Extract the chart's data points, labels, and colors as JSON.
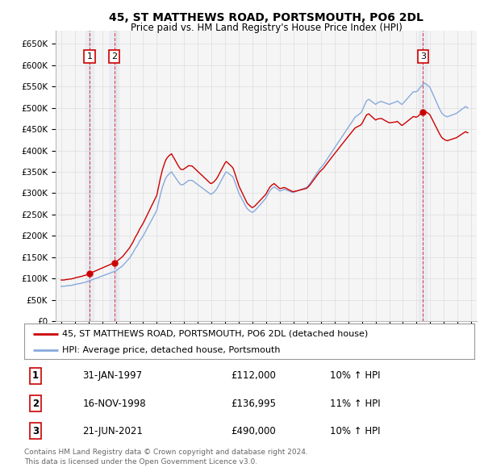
{
  "title": "45, ST MATTHEWS ROAD, PORTSMOUTH, PO6 2DL",
  "subtitle": "Price paid vs. HM Land Registry's House Price Index (HPI)",
  "ylabel_ticks": [
    "£0",
    "£50K",
    "£100K",
    "£150K",
    "£200K",
    "£250K",
    "£300K",
    "£350K",
    "£400K",
    "£450K",
    "£500K",
    "£550K",
    "£600K",
    "£650K"
  ],
  "ytick_values": [
    0,
    50000,
    100000,
    150000,
    200000,
    250000,
    300000,
    350000,
    400000,
    450000,
    500000,
    550000,
    600000,
    650000
  ],
  "ylim": [
    0,
    680000
  ],
  "xlim_start": 1994.6,
  "xlim_end": 2025.4,
  "background_color": "#ffffff",
  "chart_bg_color": "#f5f5f5",
  "grid_color": "#dddddd",
  "sale_color": "#cc0000",
  "hpi_color": "#88aadd",
  "vline_color": "#cc0000",
  "dot_color": "#cc0000",
  "transactions": [
    {
      "num": 1,
      "date_str": "31-JAN-1997",
      "price": 112000,
      "year": 1997.08,
      "pct": "10%",
      "dir": "↑"
    },
    {
      "num": 2,
      "date_str": "16-NOV-1998",
      "price": 136995,
      "year": 1998.88,
      "pct": "11%",
      "dir": "↑"
    },
    {
      "num": 3,
      "date_str": "21-JUN-2021",
      "price": 490000,
      "year": 2021.47,
      "pct": "10%",
      "dir": "↑"
    }
  ],
  "legend_sale_label": "45, ST MATTHEWS ROAD, PORTSMOUTH, PO6 2DL (detached house)",
  "legend_hpi_label": "HPI: Average price, detached house, Portsmouth",
  "footer1": "Contains HM Land Registry data © Crown copyright and database right 2024.",
  "footer2": "This data is licensed under the Open Government Licence v3.0.",
  "hpi_data_years": [
    1995.0,
    1995.083,
    1995.167,
    1995.25,
    1995.333,
    1995.417,
    1995.5,
    1995.583,
    1995.667,
    1995.75,
    1995.833,
    1995.917,
    1996.0,
    1996.083,
    1996.167,
    1996.25,
    1996.333,
    1996.417,
    1996.5,
    1996.583,
    1996.667,
    1996.75,
    1996.833,
    1996.917,
    1997.0,
    1997.083,
    1997.167,
    1997.25,
    1997.333,
    1997.417,
    1997.5,
    1997.583,
    1997.667,
    1997.75,
    1997.833,
    1997.917,
    1998.0,
    1998.083,
    1998.167,
    1998.25,
    1998.333,
    1998.417,
    1998.5,
    1998.583,
    1998.667,
    1998.75,
    1998.833,
    1998.917,
    1999.0,
    1999.083,
    1999.167,
    1999.25,
    1999.333,
    1999.417,
    1999.5,
    1999.583,
    1999.667,
    1999.75,
    1999.833,
    1999.917,
    2000.0,
    2000.083,
    2000.167,
    2000.25,
    2000.333,
    2000.417,
    2000.5,
    2000.583,
    2000.667,
    2000.75,
    2000.833,
    2000.917,
    2001.0,
    2001.083,
    2001.167,
    2001.25,
    2001.333,
    2001.417,
    2001.5,
    2001.583,
    2001.667,
    2001.75,
    2001.833,
    2001.917,
    2002.0,
    2002.083,
    2002.167,
    2002.25,
    2002.333,
    2002.417,
    2002.5,
    2002.583,
    2002.667,
    2002.75,
    2002.833,
    2002.917,
    2003.0,
    2003.083,
    2003.167,
    2003.25,
    2003.333,
    2003.417,
    2003.5,
    2003.583,
    2003.667,
    2003.75,
    2003.833,
    2003.917,
    2004.0,
    2004.083,
    2004.167,
    2004.25,
    2004.333,
    2004.417,
    2004.5,
    2004.583,
    2004.667,
    2004.75,
    2004.833,
    2004.917,
    2005.0,
    2005.083,
    2005.167,
    2005.25,
    2005.333,
    2005.417,
    2005.5,
    2005.583,
    2005.667,
    2005.75,
    2005.833,
    2005.917,
    2006.0,
    2006.083,
    2006.167,
    2006.25,
    2006.333,
    2006.417,
    2006.5,
    2006.583,
    2006.667,
    2006.75,
    2006.833,
    2006.917,
    2007.0,
    2007.083,
    2007.167,
    2007.25,
    2007.333,
    2007.417,
    2007.5,
    2007.583,
    2007.667,
    2007.75,
    2007.833,
    2007.917,
    2008.0,
    2008.083,
    2008.167,
    2008.25,
    2008.333,
    2008.417,
    2008.5,
    2008.583,
    2008.667,
    2008.75,
    2008.833,
    2008.917,
    2009.0,
    2009.083,
    2009.167,
    2009.25,
    2009.333,
    2009.417,
    2009.5,
    2009.583,
    2009.667,
    2009.75,
    2009.833,
    2009.917,
    2010.0,
    2010.083,
    2010.167,
    2010.25,
    2010.333,
    2010.417,
    2010.5,
    2010.583,
    2010.667,
    2010.75,
    2010.833,
    2010.917,
    2011.0,
    2011.083,
    2011.167,
    2011.25,
    2011.333,
    2011.417,
    2011.5,
    2011.583,
    2011.667,
    2011.75,
    2011.833,
    2011.917,
    2012.0,
    2012.083,
    2012.167,
    2012.25,
    2012.333,
    2012.417,
    2012.5,
    2012.583,
    2012.667,
    2012.75,
    2012.833,
    2012.917,
    2013.0,
    2013.083,
    2013.167,
    2013.25,
    2013.333,
    2013.417,
    2013.5,
    2013.583,
    2013.667,
    2013.75,
    2013.833,
    2013.917,
    2014.0,
    2014.083,
    2014.167,
    2014.25,
    2014.333,
    2014.417,
    2014.5,
    2014.583,
    2014.667,
    2014.75,
    2014.833,
    2014.917,
    2015.0,
    2015.083,
    2015.167,
    2015.25,
    2015.333,
    2015.417,
    2015.5,
    2015.583,
    2015.667,
    2015.75,
    2015.833,
    2015.917,
    2016.0,
    2016.083,
    2016.167,
    2016.25,
    2016.333,
    2016.417,
    2016.5,
    2016.583,
    2016.667,
    2016.75,
    2016.833,
    2016.917,
    2017.0,
    2017.083,
    2017.167,
    2017.25,
    2017.333,
    2017.417,
    2017.5,
    2017.583,
    2017.667,
    2017.75,
    2017.833,
    2017.917,
    2018.0,
    2018.083,
    2018.167,
    2018.25,
    2018.333,
    2018.417,
    2018.5,
    2018.583,
    2018.667,
    2018.75,
    2018.833,
    2018.917,
    2019.0,
    2019.083,
    2019.167,
    2019.25,
    2019.333,
    2019.417,
    2019.5,
    2019.583,
    2019.667,
    2019.75,
    2019.833,
    2019.917,
    2020.0,
    2020.083,
    2020.167,
    2020.25,
    2020.333,
    2020.417,
    2020.5,
    2020.583,
    2020.667,
    2020.75,
    2020.833,
    2020.917,
    2021.0,
    2021.083,
    2021.167,
    2021.25,
    2021.333,
    2021.417,
    2021.5,
    2021.583,
    2021.667,
    2021.75,
    2021.833,
    2021.917,
    2022.0,
    2022.083,
    2022.167,
    2022.25,
    2022.333,
    2022.417,
    2022.5,
    2022.583,
    2022.667,
    2022.75,
    2022.833,
    2022.917,
    2023.0,
    2023.083,
    2023.167,
    2023.25,
    2023.333,
    2023.417,
    2023.5,
    2023.583,
    2023.667,
    2023.75,
    2023.833,
    2023.917,
    2024.0,
    2024.083,
    2024.167,
    2024.25,
    2024.333,
    2024.417,
    2024.5,
    2024.583,
    2024.667,
    2024.75
  ],
  "hpi_data_values": [
    82000,
    82000,
    82000,
    82000,
    83000,
    83000,
    83000,
    84000,
    84000,
    84000,
    85000,
    85000,
    86000,
    87000,
    87000,
    88000,
    88000,
    89000,
    89000,
    90000,
    91000,
    91000,
    92000,
    93000,
    94000,
    95000,
    96000,
    97000,
    98000,
    99000,
    100000,
    101000,
    102000,
    103000,
    104000,
    105000,
    106000,
    107000,
    108000,
    109000,
    110000,
    111000,
    112000,
    113000,
    114000,
    115000,
    116000,
    117000,
    118000,
    120000,
    122000,
    124000,
    126000,
    128000,
    130000,
    133000,
    136000,
    139000,
    142000,
    145000,
    148000,
    152000,
    156000,
    160000,
    165000,
    170000,
    174000,
    178000,
    183000,
    188000,
    192000,
    196000,
    200000,
    205000,
    210000,
    215000,
    220000,
    225000,
    230000,
    235000,
    240000,
    245000,
    250000,
    255000,
    260000,
    272000,
    283000,
    295000,
    305000,
    315000,
    322000,
    330000,
    336000,
    340000,
    343000,
    346000,
    348000,
    350000,
    345000,
    342000,
    338000,
    334000,
    330000,
    326000,
    323000,
    320000,
    320000,
    320000,
    322000,
    324000,
    326000,
    328000,
    330000,
    330000,
    330000,
    330000,
    328000,
    326000,
    324000,
    322000,
    320000,
    318000,
    316000,
    314000,
    312000,
    310000,
    308000,
    306000,
    304000,
    302000,
    300000,
    298000,
    298000,
    300000,
    302000,
    305000,
    308000,
    312000,
    317000,
    322000,
    327000,
    332000,
    337000,
    342000,
    347000,
    350000,
    348000,
    346000,
    344000,
    342000,
    340000,
    337000,
    330000,
    323000,
    315000,
    308000,
    300000,
    295000,
    290000,
    285000,
    280000,
    275000,
    270000,
    265000,
    262000,
    260000,
    258000,
    256000,
    255000,
    257000,
    259000,
    262000,
    265000,
    268000,
    271000,
    274000,
    277000,
    280000,
    283000,
    286000,
    290000,
    295000,
    300000,
    305000,
    308000,
    311000,
    313000,
    315000,
    313000,
    311000,
    309000,
    307000,
    305000,
    306000,
    307000,
    308000,
    309000,
    308000,
    307000,
    306000,
    305000,
    304000,
    303000,
    302000,
    302000,
    303000,
    304000,
    305000,
    306000,
    307000,
    308000,
    309000,
    310000,
    311000,
    312000,
    313000,
    315000,
    318000,
    321000,
    325000,
    329000,
    333000,
    337000,
    341000,
    345000,
    349000,
    353000,
    357000,
    360000,
    363000,
    366000,
    370000,
    374000,
    378000,
    382000,
    386000,
    390000,
    394000,
    398000,
    402000,
    406000,
    410000,
    414000,
    418000,
    422000,
    426000,
    430000,
    434000,
    438000,
    442000,
    446000,
    450000,
    454000,
    458000,
    462000,
    466000,
    470000,
    474000,
    478000,
    480000,
    482000,
    484000,
    486000,
    488000,
    492000,
    498000,
    504000,
    510000,
    516000,
    518000,
    520000,
    518000,
    516000,
    514000,
    512000,
    510000,
    508000,
    510000,
    512000,
    513000,
    514000,
    515000,
    514000,
    513000,
    512000,
    511000,
    510000,
    509000,
    508000,
    509000,
    510000,
    511000,
    512000,
    513000,
    514000,
    516000,
    514000,
    512000,
    510000,
    508000,
    510000,
    513000,
    516000,
    519000,
    522000,
    525000,
    528000,
    531000,
    534000,
    537000,
    538000,
    537000,
    538000,
    540000,
    544000,
    547000,
    550000,
    553000,
    556000,
    558000,
    556000,
    554000,
    552000,
    550000,
    546000,
    540000,
    534000,
    528000,
    522000,
    516000,
    510000,
    504000,
    498000,
    493000,
    488000,
    485000,
    483000,
    481000,
    480000,
    479000,
    480000,
    481000,
    482000,
    483000,
    484000,
    485000,
    486000,
    487000,
    489000,
    491000,
    493000,
    495000,
    497000,
    499000,
    501000,
    503000,
    501000,
    500000
  ]
}
